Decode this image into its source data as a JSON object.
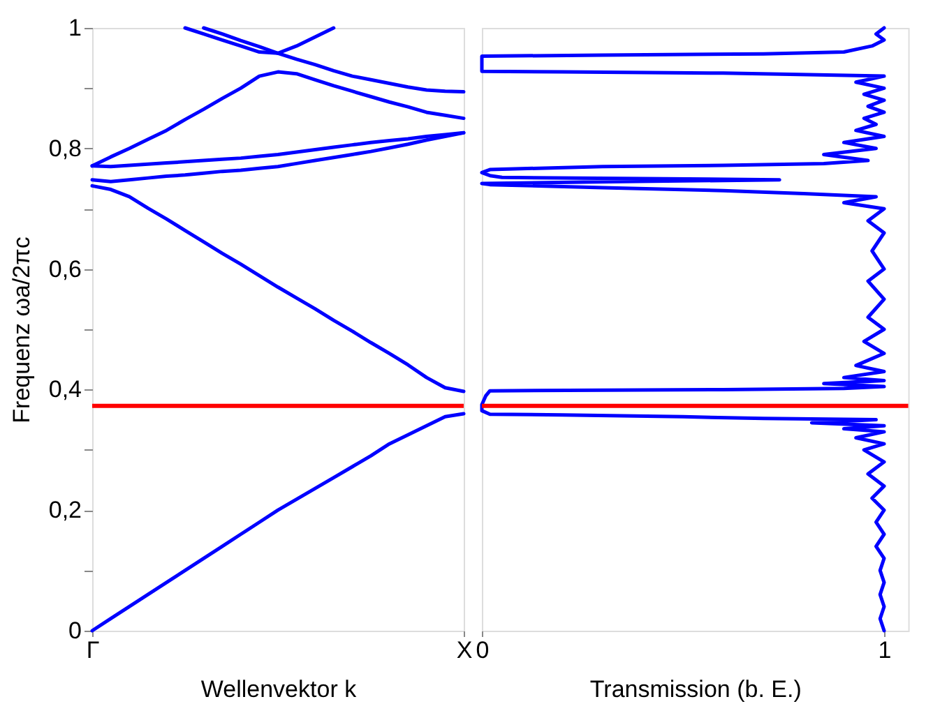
{
  "chart_data": [
    {
      "type": "line",
      "xlabel": "Wellenvektor k",
      "ylabel": "Frequenz ωa/2πc",
      "ylim": [
        0,
        1
      ],
      "categories": [
        "Γ",
        null,
        null,
        null,
        null,
        null,
        null,
        null,
        null,
        null,
        null,
        null,
        null,
        null,
        null,
        null,
        null,
        null,
        null,
        null,
        "X"
      ],
      "yticks": [
        0,
        {
          "value": 0.1,
          "label": null
        },
        {
          "value": 0.2,
          "label": "0,2"
        },
        {
          "value": 0.3,
          "label": null
        },
        {
          "value": 0.4,
          "label": "0,4"
        },
        {
          "value": 0.5,
          "label": null
        },
        {
          "value": 0.6,
          "label": "0,6"
        },
        {
          "value": 0.7,
          "label": null
        },
        {
          "value": 0.8,
          "label": "0,8"
        },
        {
          "value": 0.9,
          "label": null
        },
        1
      ],
      "grid": false,
      "legend": false,
      "ref_lines": [
        {
          "axis": "y",
          "value": 0.373,
          "color": "#ff0000"
        }
      ],
      "series": [
        {
          "color": "#0000ff",
          "values": [
            0,
            0.02,
            0.04,
            0.06,
            0.08,
            0.1,
            0.12,
            0.14,
            0.16,
            0.18,
            0.2,
            0.218,
            0.236,
            0.254,
            0.272,
            0.29,
            0.31,
            0.325,
            0.34,
            0.355,
            0.36
          ]
        },
        {
          "color": "#0000ff",
          "values": [
            0.738,
            0.732,
            0.72,
            0.701,
            0.683,
            0.664,
            0.645,
            0.626,
            0.608,
            0.589,
            0.57,
            0.552,
            0.534,
            0.515,
            0.497,
            0.478,
            0.46,
            0.441,
            0.42,
            0.403,
            0.397
          ]
        },
        {
          "color": "#0000ff",
          "values": [
            0.748,
            0.745,
            0.748,
            0.751,
            0.754,
            0.756,
            0.759,
            0.762,
            0.764,
            0.767,
            0.77,
            0.775,
            0.78,
            0.785,
            0.79,
            0.795,
            0.801,
            0.807,
            0.814,
            0.82,
            0.826
          ]
        },
        {
          "color": "#0000ff",
          "values": [
            0.771,
            0.77,
            0.772,
            0.774,
            0.776,
            0.778,
            0.78,
            0.782,
            0.784,
            0.787,
            0.79,
            0.794,
            0.798,
            0.802,
            0.806,
            0.81,
            0.813,
            0.816,
            0.82,
            0.823,
            0.826
          ]
        },
        {
          "color": "#0000ff",
          "values": [
            0.771,
            0.786,
            0.8,
            0.815,
            0.83,
            0.848,
            0.865,
            0.883,
            0.9,
            0.92,
            0.927,
            0.924,
            0.914,
            0.904,
            0.895,
            0.886,
            0.877,
            0.869,
            0.86,
            0.855,
            0.85
          ]
        },
        {
          "color": "#0000ff",
          "values": [
            null,
            null,
            null,
            null,
            null,
            1,
            0.99,
            0.98,
            0.97,
            0.96,
            0.958,
            0.97,
            0.985,
            1,
            null,
            null,
            null,
            null,
            null,
            null,
            null
          ]
        },
        {
          "color": "#0000ff",
          "values": [
            null,
            null,
            null,
            null,
            null,
            null,
            1,
            0.99,
            0.979,
            0.969,
            0.958,
            0.948,
            0.939,
            0.929,
            0.92,
            0.914,
            0.908,
            0.902,
            0.897,
            0.895,
            0.894
          ]
        }
      ]
    },
    {
      "type": "line",
      "xlabel": "Transmission (b. E.)",
      "xlim": [
        0,
        1.06
      ],
      "ylim": [
        0,
        1
      ],
      "xticks": [
        0,
        1
      ],
      "tick_labels": "x",
      "grid": false,
      "legend": false,
      "ref_lines": [
        {
          "axis": "y",
          "value": 0.373,
          "color": "#ff0000"
        }
      ],
      "series": [
        {
          "color": "#0000ff",
          "x": [
            1.0,
            0.99,
            1.0,
            0.99,
            1.0,
            0.99,
            1.0,
            0.98,
            1.0,
            0.98,
            1.0,
            0.97,
            1.0,
            0.96,
            1.0,
            0.95,
            1.0,
            0.93,
            1.0,
            0.9,
            1.0,
            0.82,
            0.98,
            0.7,
            0.5,
            0.2,
            0.02,
            0.0,
            0.0,
            0.01,
            0.02,
            0.3,
            0.6,
            0.9,
            1.0,
            0.85,
            1.0,
            0.9,
            1.0,
            0.93,
            1.0,
            0.95,
            1.0,
            0.96,
            1.0,
            0.96,
            1.0,
            0.97,
            1.0,
            0.96,
            1.0,
            0.9,
            0.98,
            0.8,
            0.6,
            0.3,
            0.02,
            0.0,
            0.35,
            0.74,
            0.4,
            0.05,
            0.02,
            0.0,
            0.02,
            0.3,
            0.6,
            0.85,
            0.96,
            0.85,
            0.98,
            0.9,
            1.0,
            0.93,
            0.98,
            0.95,
            1.0,
            0.96,
            1.0,
            0.95,
            1.0,
            0.93,
            1.0,
            0.6,
            0.2,
            0.0,
            0.0,
            0.3,
            0.7,
            0.9,
            0.97,
            1.0,
            0.98,
            1.0
          ],
          "values": [
            0,
            0.02,
            0.04,
            0.06,
            0.08,
            0.1,
            0.12,
            0.14,
            0.16,
            0.18,
            0.2,
            0.22,
            0.24,
            0.26,
            0.28,
            0.3,
            0.31,
            0.32,
            0.33,
            0.335,
            0.34,
            0.345,
            0.35,
            0.352,
            0.355,
            0.358,
            0.359,
            0.365,
            0.375,
            0.39,
            0.398,
            0.399,
            0.4,
            0.402,
            0.405,
            0.41,
            0.415,
            0.42,
            0.43,
            0.44,
            0.46,
            0.48,
            0.5,
            0.52,
            0.55,
            0.58,
            0.6,
            0.63,
            0.66,
            0.68,
            0.7,
            0.71,
            0.72,
            0.725,
            0.73,
            0.735,
            0.74,
            0.742,
            0.745,
            0.748,
            0.75,
            0.752,
            0.755,
            0.76,
            0.765,
            0.77,
            0.772,
            0.775,
            0.78,
            0.79,
            0.8,
            0.81,
            0.82,
            0.83,
            0.84,
            0.85,
            0.86,
            0.87,
            0.88,
            0.89,
            0.9,
            0.91,
            0.92,
            0.925,
            0.927,
            0.928,
            0.953,
            0.955,
            0.957,
            0.96,
            0.97,
            0.98,
            0.99,
            1.0
          ]
        }
      ]
    }
  ]
}
